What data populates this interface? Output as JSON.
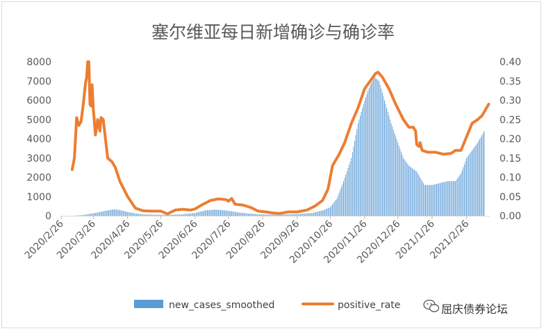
{
  "chart_data": {
    "type": "bar+line",
    "title": "塞尔维亚每日新增确诊与确诊率",
    "x_dates": [
      "2020-02-26",
      "2020-03-26",
      "2020-04-26",
      "2020-05-26",
      "2020-06-26",
      "2020-07-26",
      "2020-08-26",
      "2020-09-26",
      "2020-10-26",
      "2020-11-26",
      "2020-12-26",
      "2021-01-26",
      "2021-02-26"
    ],
    "x_tick_labels": [
      "2020/2/26",
      "2020/3/26",
      "2020/4/26",
      "2020/5/26",
      "2020/6/26",
      "2020/7/26",
      "2020/8/26",
      "2020/9/26",
      "2020/10/26",
      "2020/11/26",
      "2020/12/26",
      "2021/1/26",
      "2021/2/26"
    ],
    "y_left": {
      "range": [
        0,
        8000
      ],
      "ticks": [
        "0",
        "1000",
        "2000",
        "3000",
        "4000",
        "5000",
        "6000",
        "7000",
        "8000"
      ]
    },
    "y_right": {
      "range": [
        0,
        0.4
      ],
      "ticks": [
        "0.00",
        "0.05",
        "0.10",
        "0.15",
        "0.20",
        "0.25",
        "0.30",
        "0.35",
        "0.40"
      ]
    },
    "series": [
      {
        "name": "new_cases_smoothed",
        "kind": "bar",
        "axis": "left",
        "color": "#5b9bd5",
        "points": [
          [
            "2020-03-07",
            0
          ],
          [
            "2020-03-15",
            30
          ],
          [
            "2020-03-25",
            120
          ],
          [
            "2020-04-01",
            200
          ],
          [
            "2020-04-08",
            280
          ],
          [
            "2020-04-14",
            340
          ],
          [
            "2020-04-19",
            300
          ],
          [
            "2020-04-26",
            200
          ],
          [
            "2020-05-03",
            130
          ],
          [
            "2020-05-10",
            80
          ],
          [
            "2020-05-20",
            60
          ],
          [
            "2020-05-31",
            50
          ],
          [
            "2020-06-15",
            80
          ],
          [
            "2020-06-26",
            150
          ],
          [
            "2020-07-05",
            280
          ],
          [
            "2020-07-14",
            320
          ],
          [
            "2020-07-20",
            300
          ],
          [
            "2020-07-26",
            260
          ],
          [
            "2020-08-05",
            170
          ],
          [
            "2020-08-15",
            110
          ],
          [
            "2020-08-26",
            70
          ],
          [
            "2020-09-10",
            60
          ],
          [
            "2020-09-26",
            90
          ],
          [
            "2020-10-10",
            150
          ],
          [
            "2020-10-20",
            300
          ],
          [
            "2020-10-26",
            450
          ],
          [
            "2020-11-01",
            900
          ],
          [
            "2020-11-07",
            1800
          ],
          [
            "2020-11-14",
            3000
          ],
          [
            "2020-11-20",
            4800
          ],
          [
            "2020-11-26",
            6000
          ],
          [
            "2020-12-01",
            6800
          ],
          [
            "2020-12-05",
            7200
          ],
          [
            "2020-12-09",
            7000
          ],
          [
            "2020-12-14",
            6000
          ],
          [
            "2020-12-20",
            4800
          ],
          [
            "2020-12-26",
            3800
          ],
          [
            "2020-12-31",
            3000
          ],
          [
            "2021-01-05",
            2600
          ],
          [
            "2021-01-12",
            2300
          ],
          [
            "2021-01-19",
            1600
          ],
          [
            "2021-01-26",
            1600
          ],
          [
            "2021-02-02",
            1700
          ],
          [
            "2021-02-09",
            1800
          ],
          [
            "2021-02-16",
            1800
          ],
          [
            "2021-02-21",
            2200
          ],
          [
            "2021-02-26",
            3000
          ],
          [
            "2021-03-03",
            3400
          ],
          [
            "2021-03-08",
            3800
          ],
          [
            "2021-03-14",
            4400
          ]
        ]
      },
      {
        "name": "positive_rate",
        "kind": "line",
        "axis": "right",
        "color": "#ed7d31",
        "points": [
          [
            "2020-03-07",
            0.12
          ],
          [
            "2020-03-09",
            0.15
          ],
          [
            "2020-03-11",
            0.255
          ],
          [
            "2020-03-13",
            0.235
          ],
          [
            "2020-03-15",
            0.245
          ],
          [
            "2020-03-17",
            0.29
          ],
          [
            "2020-03-19",
            0.345
          ],
          [
            "2020-03-20",
            0.36
          ],
          [
            "2020-03-21",
            0.4
          ],
          [
            "2020-03-22",
            0.4
          ],
          [
            "2020-03-23",
            0.29
          ],
          [
            "2020-03-24",
            0.285
          ],
          [
            "2020-03-25",
            0.34
          ],
          [
            "2020-03-26",
            0.28
          ],
          [
            "2020-03-28",
            0.21
          ],
          [
            "2020-03-30",
            0.25
          ],
          [
            "2020-04-01",
            0.22
          ],
          [
            "2020-04-02",
            0.255
          ],
          [
            "2020-04-04",
            0.25
          ],
          [
            "2020-04-06",
            0.2
          ],
          [
            "2020-04-08",
            0.15
          ],
          [
            "2020-04-12",
            0.14
          ],
          [
            "2020-04-15",
            0.125
          ],
          [
            "2020-04-19",
            0.09
          ],
          [
            "2020-04-26",
            0.05
          ],
          [
            "2020-05-03",
            0.02
          ],
          [
            "2020-05-10",
            0.013
          ],
          [
            "2020-05-18",
            0.012
          ],
          [
            "2020-05-26",
            0.012
          ],
          [
            "2020-06-01",
            0.005
          ],
          [
            "2020-06-08",
            0.015
          ],
          [
            "2020-06-15",
            0.017
          ],
          [
            "2020-06-22",
            0.015
          ],
          [
            "2020-06-26",
            0.018
          ],
          [
            "2020-07-03",
            0.03
          ],
          [
            "2020-07-10",
            0.04
          ],
          [
            "2020-07-17",
            0.044
          ],
          [
            "2020-07-24",
            0.042
          ],
          [
            "2020-07-26",
            0.038
          ],
          [
            "2020-07-29",
            0.045
          ],
          [
            "2020-08-01",
            0.03
          ],
          [
            "2020-08-08",
            0.028
          ],
          [
            "2020-08-15",
            0.022
          ],
          [
            "2020-08-22",
            0.012
          ],
          [
            "2020-08-26",
            0.011
          ],
          [
            "2020-09-03",
            0.008
          ],
          [
            "2020-09-10",
            0.006
          ],
          [
            "2020-09-18",
            0.01
          ],
          [
            "2020-09-26",
            0.01
          ],
          [
            "2020-10-05",
            0.015
          ],
          [
            "2020-10-12",
            0.025
          ],
          [
            "2020-10-19",
            0.04
          ],
          [
            "2020-10-24",
            0.07
          ],
          [
            "2020-10-28",
            0.13
          ],
          [
            "2020-11-03",
            0.16
          ],
          [
            "2020-11-08",
            0.19
          ],
          [
            "2020-11-14",
            0.24
          ],
          [
            "2020-11-20",
            0.28
          ],
          [
            "2020-11-26",
            0.33
          ],
          [
            "2020-12-01",
            0.35
          ],
          [
            "2020-12-06",
            0.37
          ],
          [
            "2020-12-08",
            0.373
          ],
          [
            "2020-12-12",
            0.36
          ],
          [
            "2020-12-18",
            0.33
          ],
          [
            "2020-12-24",
            0.29
          ],
          [
            "2020-12-31",
            0.25
          ],
          [
            "2021-01-05",
            0.23
          ],
          [
            "2021-01-09",
            0.23
          ],
          [
            "2021-01-11",
            0.22
          ],
          [
            "2021-01-12",
            0.185
          ],
          [
            "2021-01-14",
            0.18
          ],
          [
            "2021-01-15",
            0.19
          ],
          [
            "2021-01-17",
            0.17
          ],
          [
            "2021-01-22",
            0.165
          ],
          [
            "2021-01-29",
            0.165
          ],
          [
            "2021-02-05",
            0.16
          ],
          [
            "2021-02-12",
            0.162
          ],
          [
            "2021-02-16",
            0.17
          ],
          [
            "2021-02-21",
            0.17
          ],
          [
            "2021-02-26",
            0.205
          ],
          [
            "2021-03-03",
            0.24
          ],
          [
            "2021-03-08",
            0.25
          ],
          [
            "2021-03-12",
            0.26
          ],
          [
            "2021-03-16",
            0.28
          ],
          [
            "2021-03-18",
            0.29
          ]
        ]
      }
    ],
    "grid": false,
    "legend": "bottom"
  },
  "watermark": {
    "icon": "wechat-icon",
    "text": "屈庆债券论坛"
  }
}
